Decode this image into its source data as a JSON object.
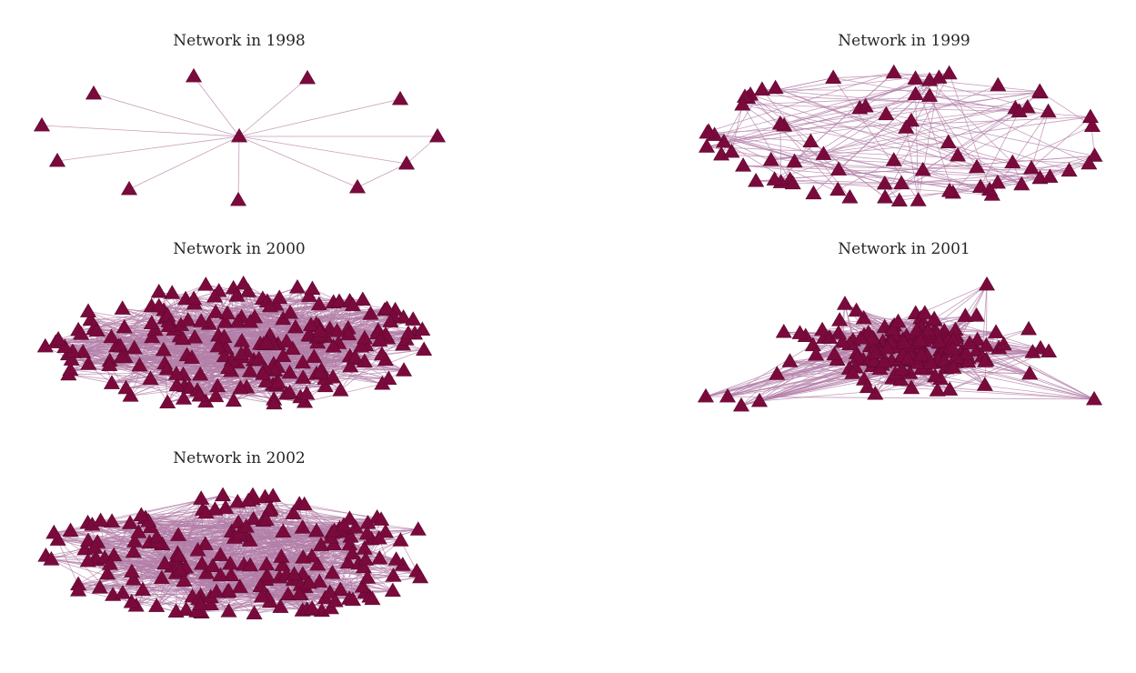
{
  "colors": {
    "node": "#7b0a3c",
    "edge": "#b37fa8",
    "title": "#262626",
    "background": "#ffffff"
  },
  "node_marker": "triangle-up",
  "panels": [
    {
      "id": "1998",
      "title": "Network in 1998",
      "layout": "star",
      "node_count": 13,
      "edge_density": 0,
      "seed": 1
    },
    {
      "id": "1999",
      "title": "Network in 1999",
      "layout": "ring-cluster",
      "node_count": 75,
      "edge_density": 0.05,
      "seed": 7
    },
    {
      "id": "2000",
      "title": "Network in 2000",
      "layout": "dense",
      "node_count": 210,
      "edge_density": 0.04,
      "seed": 13
    },
    {
      "id": "2001",
      "title": "Network in 2001",
      "layout": "dense-compact",
      "node_count": 190,
      "edge_density": 0.05,
      "seed": 21
    },
    {
      "id": "2002",
      "title": "Network in 2002",
      "layout": "dense",
      "node_count": 190,
      "edge_density": 0.045,
      "seed": 33
    }
  ]
}
